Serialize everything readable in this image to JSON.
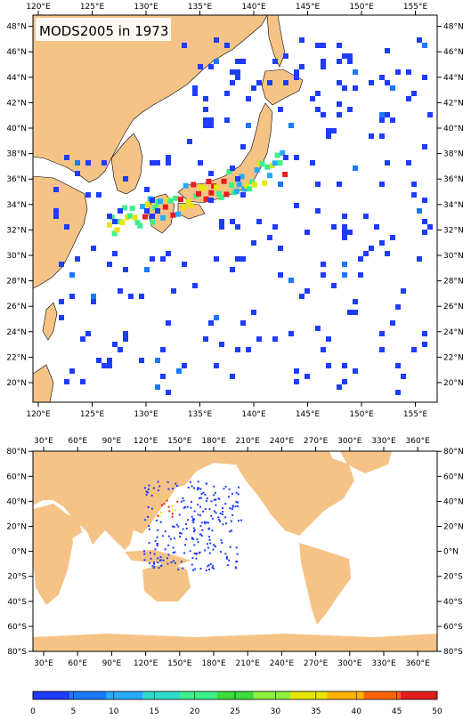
{
  "top_map": {
    "title": "MODS2005 in 1973",
    "lon_labels": [
      "120°E",
      "125°E",
      "130°E",
      "135°E",
      "140°E",
      "145°E",
      "150°E",
      "155°E"
    ],
    "lat_labels": [
      "20°N",
      "22°N",
      "24°N",
      "26°N",
      "28°N",
      "30°N",
      "32°N",
      "34°N",
      "36°N",
      "38°N",
      "40°N",
      "42°N",
      "44°N",
      "46°N",
      "48°N"
    ]
  },
  "bottom_map": {
    "lon_labels": [
      "30°E",
      "60°E",
      "90°E",
      "120°E",
      "150°E",
      "180°E",
      "210°E",
      "240°E",
      "270°E",
      "300°E",
      "330°E",
      "360°E"
    ],
    "lat_labels": [
      "80°S",
      "60°S",
      "40°S",
      "20°S",
      "0°N",
      "20°N",
      "40°N",
      "60°N",
      "80°N"
    ]
  },
  "colorbar": {
    "labels": [
      "0",
      "5",
      "10",
      "15",
      "20",
      "25",
      "30",
      "35",
      "40",
      "45",
      "50"
    ],
    "colors": [
      "#1e3cff",
      "#1a78ff",
      "#28aaff",
      "#2ddccc",
      "#3cf08c",
      "#3cdc3c",
      "#8cf03c",
      "#e6e600",
      "#ffb400",
      "#ff6400",
      "#e61e1e"
    ]
  },
  "colors": {
    "land": "#f5c386",
    "ocean": "#ffffff",
    "obs_low": "#1e3cff",
    "obs_mid": "#2ddccc",
    "obs_high": "#e61e1e"
  }
}
